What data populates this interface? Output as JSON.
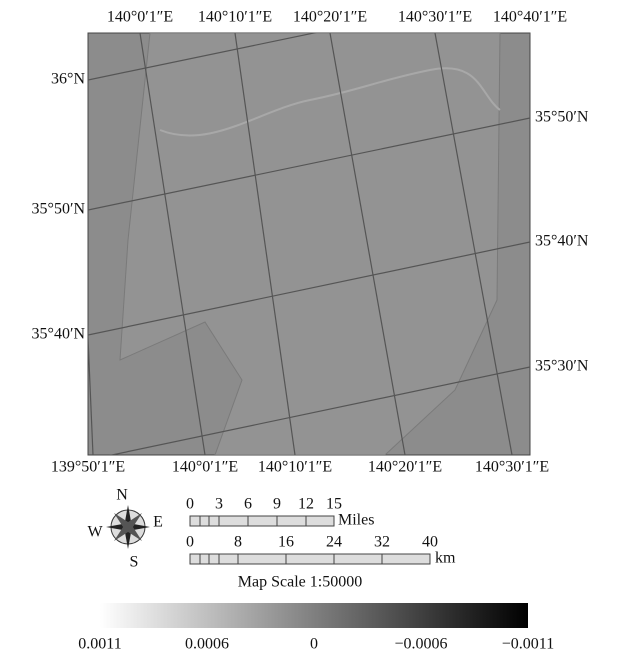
{
  "map": {
    "top_lon_labels": [
      "140°0′1″E",
      "140°10′1″E",
      "140°20′1″E",
      "140°30′1″E",
      "140°40′1″E"
    ],
    "bottom_lon_labels": [
      "139°50′1″E",
      "140°0′1″E",
      "140°10′1″E",
      "140°20′1″E",
      "140°30′1″E"
    ],
    "left_lat_labels": [
      "36°N",
      "35°50′N",
      "35°40′N"
    ],
    "right_lat_labels": [
      "35°50′N",
      "35°40′N",
      "35°30′N"
    ]
  },
  "compass": {
    "north": "N",
    "east": "E",
    "west": "W",
    "south": "S"
  },
  "scale_bars": {
    "miles": {
      "ticks": [
        "0",
        "3",
        "6",
        "9",
        "12",
        "15"
      ],
      "unit": "Miles"
    },
    "km": {
      "ticks": [
        "0",
        "8",
        "16",
        "24",
        "32",
        "40"
      ],
      "unit": "km"
    }
  },
  "map_scale": "Map Scale 1:50000",
  "colorbar": {
    "labels": [
      "0.0011",
      "0.0006",
      "0",
      "−0.0006",
      "−0.0011"
    ]
  }
}
